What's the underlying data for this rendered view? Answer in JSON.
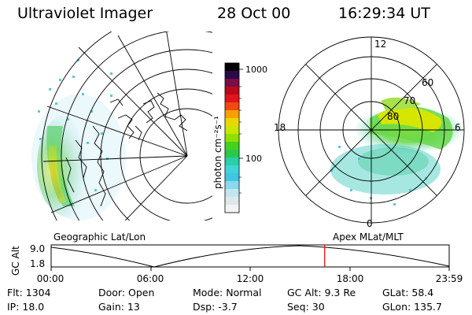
{
  "header": {
    "instrument": "Ultraviolet Imager",
    "date": "28 Oct 00",
    "time": "16:29:34 UT"
  },
  "colorbar": {
    "unit_label": "photon cm⁻²s⁻¹",
    "ticks": [
      "1000",
      "100"
    ],
    "scale": "log"
  },
  "left_panel": {
    "caption": "Geographic Lat/Lon"
  },
  "right_panel": {
    "caption": "Apex  MLat/MLT",
    "mlt_labels": {
      "top": "12",
      "left": "18",
      "right": "6",
      "bottom": "0"
    },
    "mlat_labels": [
      "60",
      "70",
      "80"
    ]
  },
  "orbit_plot": {
    "ylabel": "GC Alt",
    "ytick_top": "9.0",
    "ytick_bottom": "1.8",
    "xticks": [
      "00:00",
      "06:00",
      "12:00",
      "18:00",
      "23:59"
    ],
    "current_time_hours": 16.49,
    "marker_color": "#ff0000"
  },
  "info": {
    "flt": "Flt:  1304",
    "ip": "IP:  18.0",
    "door": "Door:  Open",
    "gain": "Gain:  13",
    "mode": "Mode:  Normal",
    "dsp": "Dsp:     -3.7",
    "gcalt": "GC Alt:  9.3 Re",
    "seq": "Seq:  30",
    "glat": "GLat:   58.4",
    "glon": "GLon:  135.7"
  }
}
